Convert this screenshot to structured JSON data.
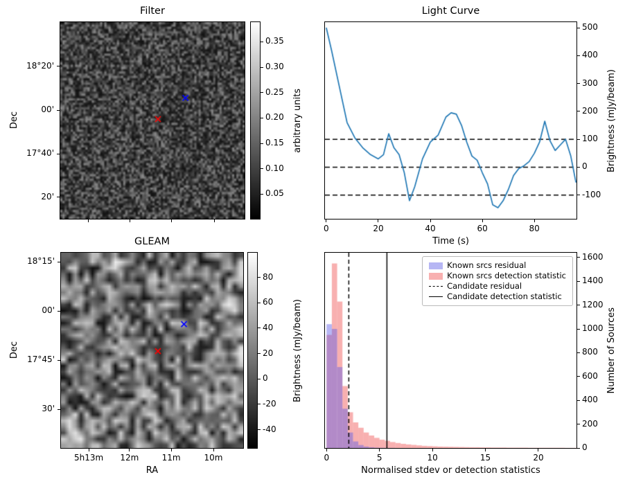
{
  "colors": {
    "line_blue": "#1f77b4",
    "hist_blue": "rgba(93,93,230,0.45)",
    "hist_pink": "rgba(240,80,80,0.45)",
    "marker_red": "#ff0000",
    "marker_blue": "#0000ff",
    "dashed_line": "#000000"
  },
  "chart_data": [
    {
      "type": "heatmap",
      "title": "Filter",
      "ylabel": "Dec",
      "xlabel": "",
      "yticks": [
        {
          "label": "18°20'",
          "rel": 0.227
        },
        {
          "label": "00'",
          "rel": 0.448
        },
        {
          "label": "17°40'",
          "rel": 0.668
        },
        {
          "label": "20'",
          "rel": 0.888
        }
      ],
      "xticks": [
        {
          "label": "",
          "rel": 0.155
        },
        {
          "label": "",
          "rel": 0.377
        },
        {
          "label": "",
          "rel": 0.604
        },
        {
          "label": "",
          "rel": 0.834
        }
      ],
      "colorbar": {
        "label": "arbitrary units",
        "vmin": 0.0,
        "vmax": 0.39,
        "ticks": [
          {
            "label": "0.35",
            "value": 0.35
          },
          {
            "label": "0.30",
            "value": 0.3
          },
          {
            "label": "0.25",
            "value": 0.25
          },
          {
            "label": "0.20",
            "value": 0.2
          },
          {
            "label": "0.15",
            "value": 0.15
          },
          {
            "label": "0.10",
            "value": 0.1
          },
          {
            "label": "0.05",
            "value": 0.05
          }
        ]
      },
      "markers": [
        {
          "shape": "x",
          "color": "#ff0000",
          "rx": 0.53,
          "ry": 0.493
        },
        {
          "shape": "x",
          "color": "#0000ff",
          "rx": 0.679,
          "ry": 0.385
        }
      ]
    },
    {
      "type": "line",
      "title": "Light Curve",
      "xlabel": "Time (s)",
      "ylabel": "Brightness (mJy/beam)",
      "xlim": [
        -0.5,
        96.2
      ],
      "ylim": [
        -185,
        520
      ],
      "xticks": [
        0,
        20,
        40,
        60,
        80
      ],
      "yticks": [
        -100,
        0,
        100,
        200,
        300,
        400,
        500
      ],
      "hlines": [
        100,
        0,
        -100
      ],
      "x": [
        0,
        2,
        5,
        8,
        11,
        14,
        17,
        20,
        22,
        24,
        26,
        28,
        30,
        32,
        34,
        37,
        40,
        43,
        46,
        48,
        50,
        52,
        54,
        56,
        58,
        60,
        62,
        64,
        66,
        68,
        70,
        72,
        74,
        76,
        78,
        80,
        82,
        84,
        86,
        88,
        90,
        92,
        94,
        96
      ],
      "y": [
        500,
        420,
        290,
        160,
        105,
        70,
        45,
        30,
        45,
        120,
        70,
        45,
        -20,
        -120,
        -70,
        30,
        90,
        115,
        180,
        195,
        190,
        150,
        90,
        40,
        25,
        -20,
        -60,
        -135,
        -145,
        -120,
        -80,
        -30,
        -5,
        5,
        20,
        50,
        90,
        165,
        95,
        60,
        80,
        100,
        40,
        -55
      ]
    },
    {
      "type": "heatmap",
      "title": "GLEAM",
      "ylabel": "Dec",
      "xlabel": "RA",
      "yticks": [
        {
          "label": "18°15'",
          "rel": 0.05
        },
        {
          "label": "00'",
          "rel": 0.3
        },
        {
          "label": "17°45'",
          "rel": 0.55
        },
        {
          "label": "30'",
          "rel": 0.8
        }
      ],
      "xticks": [
        {
          "label": "5h13m",
          "rel": 0.155
        },
        {
          "label": "12m",
          "rel": 0.377
        },
        {
          "label": "11m",
          "rel": 0.604
        },
        {
          "label": "10m",
          "rel": 0.834
        }
      ],
      "colorbar": {
        "label": "Brightness (mJy/beam)",
        "vmin": -55,
        "vmax": 100,
        "ticks": [
          {
            "label": "80",
            "value": 80
          },
          {
            "label": "60",
            "value": 60
          },
          {
            "label": "40",
            "value": 40
          },
          {
            "label": "20",
            "value": 20
          },
          {
            "label": "0",
            "value": 0
          },
          {
            "label": "-20",
            "value": -20
          },
          {
            "label": "-40",
            "value": -40
          }
        ]
      },
      "markers": [
        {
          "shape": "x",
          "color": "#ff0000",
          "rx": 0.532,
          "ry": 0.504
        },
        {
          "shape": "x",
          "color": "#0000ff",
          "rx": 0.675,
          "ry": 0.366
        }
      ]
    },
    {
      "type": "bar",
      "title": "",
      "xlabel": "Normalised stdev or detection statistics",
      "ylabel": "Number of Sources",
      "xlim": [
        -0.15,
        23.6
      ],
      "ylim": [
        0,
        1640
      ],
      "xticks": [
        0,
        5,
        10,
        15,
        20
      ],
      "yticks": [
        0,
        200,
        400,
        600,
        800,
        1000,
        1200,
        1400,
        1600
      ],
      "bin_start": 0,
      "bin_width": 0.5,
      "series": [
        {
          "name": "Known srcs detection statistic",
          "color_key": "hist_pink",
          "values": [
            950,
            1550,
            1230,
            520,
            300,
            215,
            170,
            130,
            105,
            85,
            70,
            60,
            50,
            42,
            35,
            30,
            26,
            22,
            18,
            16,
            14,
            12,
            11,
            10,
            9,
            8,
            7,
            6,
            6,
            5,
            5,
            4,
            4,
            4,
            3,
            3,
            3,
            3,
            2,
            2,
            2,
            2,
            2,
            2,
            2,
            1,
            1,
            2
          ]
        },
        {
          "name": "Known srcs residual",
          "color_key": "hist_blue",
          "values": [
            1040,
            1000,
            680,
            330,
            130,
            55,
            25,
            12,
            6,
            3,
            2,
            1,
            1,
            0,
            0,
            0,
            0,
            0,
            0,
            0,
            0,
            0,
            0,
            0,
            0,
            0,
            0,
            0,
            0,
            0,
            0,
            0,
            0,
            0,
            0,
            0,
            0,
            0,
            0,
            0,
            0,
            0,
            0,
            0,
            0,
            0,
            0,
            0
          ]
        }
      ],
      "vlines": [
        {
          "style": "dashed",
          "x": 2.1,
          "label": "Candidate residual"
        },
        {
          "style": "solid",
          "x": 5.7,
          "label": "Candidate detection statistic"
        }
      ],
      "legend": [
        {
          "swatch": "blue-patch",
          "label": "Known srcs residual"
        },
        {
          "swatch": "pink-patch",
          "label": "Known srcs detection statistic"
        },
        {
          "swatch": "dashed-line",
          "label": "Candidate residual"
        },
        {
          "swatch": "solid-line",
          "label": "Candidate detection statistic"
        }
      ]
    }
  ]
}
